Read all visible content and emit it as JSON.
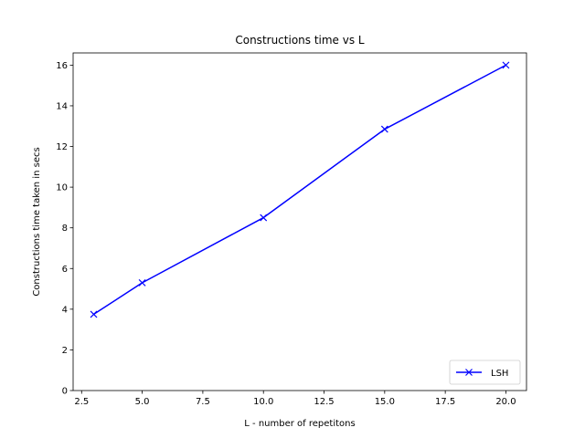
{
  "chart_data": {
    "type": "line",
    "title": "Constructions time vs L",
    "xlabel": "L - number of repetitons",
    "ylabel": "Constructions time taken in secs",
    "xlim": [
      2.15,
      20.85
    ],
    "ylim": [
      0,
      16.6
    ],
    "xticks": [
      "2.5",
      "5.0",
      "7.5",
      "10.0",
      "12.5",
      "15.0",
      "17.5",
      "20.0"
    ],
    "xtick_values": [
      2.5,
      5.0,
      7.5,
      10.0,
      12.5,
      15.0,
      17.5,
      20.0
    ],
    "yticks": [
      "0",
      "2",
      "4",
      "6",
      "8",
      "10",
      "12",
      "14",
      "16"
    ],
    "ytick_values": [
      0,
      2,
      4,
      6,
      8,
      10,
      12,
      14,
      16
    ],
    "grid": false,
    "legend_position": "lower-right",
    "series": [
      {
        "name": "LSH",
        "color": "#0000ff",
        "marker": "x",
        "x": [
          3,
          5,
          10,
          15,
          20
        ],
        "y": [
          3.75,
          5.3,
          8.5,
          12.85,
          16.0
        ]
      }
    ]
  }
}
